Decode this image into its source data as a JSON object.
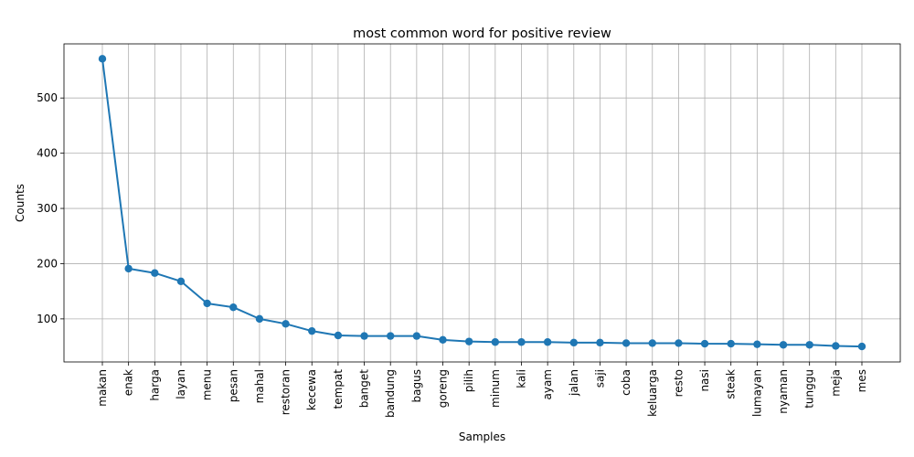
{
  "chart_data": {
    "type": "line",
    "title": "most common word for positive review",
    "xlabel": "Samples",
    "ylabel": "Counts",
    "grid": true,
    "ylim": [
      22,
      598
    ],
    "yticks": [
      100,
      200,
      300,
      400,
      500
    ],
    "line_color": "#1f77b4",
    "categories": [
      "makan",
      "enak",
      "harga",
      "layan",
      "menu",
      "pesan",
      "mahal",
      "restoran",
      "kecewa",
      "tempat",
      "banget",
      "bandung",
      "bagus",
      "goreng",
      "pilih",
      "minum",
      "kali",
      "ayam",
      "jalan",
      "saji",
      "coba",
      "keluarga",
      "resto",
      "nasi",
      "steak",
      "lumayan",
      "nyaman",
      "tunggu",
      "meja",
      "mes"
    ],
    "values": [
      571,
      191,
      183,
      168,
      128,
      121,
      100,
      91,
      78,
      70,
      69,
      69,
      69,
      62,
      59,
      58,
      58,
      58,
      57,
      57,
      56,
      56,
      56,
      55,
      55,
      54,
      53,
      53,
      51,
      50
    ]
  }
}
